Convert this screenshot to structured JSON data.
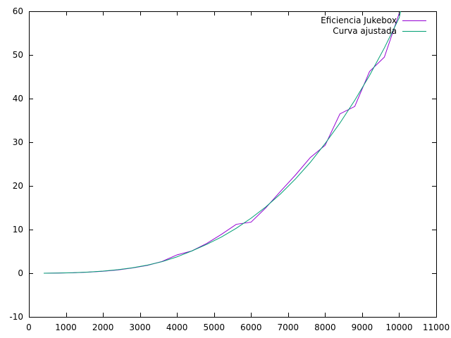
{
  "chart_data": {
    "type": "line",
    "title": "",
    "xlabel": "",
    "ylabel": "",
    "xlim": [
      0,
      11000
    ],
    "ylim": [
      -10,
      60
    ],
    "x_ticks": [
      0,
      1000,
      2000,
      3000,
      4000,
      5000,
      6000,
      7000,
      8000,
      9000,
      10000,
      11000
    ],
    "y_ticks": [
      -10,
      0,
      10,
      20,
      30,
      40,
      50,
      60
    ],
    "grid": false,
    "legend_position": "top-right",
    "series": [
      {
        "name": "Eficiencia Jukebox",
        "color": "#9400d3",
        "points": [
          [
            400,
            0.0
          ],
          [
            800,
            0.05
          ],
          [
            1200,
            0.1
          ],
          [
            1600,
            0.25
          ],
          [
            2000,
            0.45
          ],
          [
            2400,
            0.75
          ],
          [
            2800,
            1.2
          ],
          [
            3200,
            1.8
          ],
          [
            3600,
            2.7
          ],
          [
            4000,
            4.2
          ],
          [
            4400,
            5.1
          ],
          [
            4800,
            6.8
          ],
          [
            5200,
            8.9
          ],
          [
            5600,
            11.2
          ],
          [
            6000,
            11.7
          ],
          [
            6400,
            15.0
          ],
          [
            6800,
            18.8
          ],
          [
            7200,
            22.5
          ],
          [
            7600,
            26.5
          ],
          [
            8000,
            29.3
          ],
          [
            8400,
            36.5
          ],
          [
            8800,
            38.2
          ],
          [
            9200,
            46.2
          ],
          [
            9600,
            49.5
          ],
          [
            10000,
            59.5
          ]
        ]
      },
      {
        "name": "Curva ajustada",
        "color": "#009e73",
        "points": [
          [
            400,
            0.0
          ],
          [
            800,
            0.04
          ],
          [
            1200,
            0.12
          ],
          [
            1600,
            0.27
          ],
          [
            2000,
            0.48
          ],
          [
            2400,
            0.8
          ],
          [
            2800,
            1.25
          ],
          [
            3200,
            1.85
          ],
          [
            3600,
            2.65
          ],
          [
            4000,
            3.75
          ],
          [
            4400,
            5.1
          ],
          [
            4800,
            6.6
          ],
          [
            5200,
            8.3
          ],
          [
            5600,
            10.3
          ],
          [
            6000,
            12.6
          ],
          [
            6400,
            15.2
          ],
          [
            6800,
            18.2
          ],
          [
            7200,
            21.6
          ],
          [
            7600,
            25.4
          ],
          [
            8000,
            29.7
          ],
          [
            8400,
            34.4
          ],
          [
            8800,
            39.6
          ],
          [
            9200,
            45.3
          ],
          [
            9600,
            51.6
          ],
          [
            10000,
            58.5
          ],
          [
            10040,
            60.0
          ]
        ]
      }
    ]
  }
}
